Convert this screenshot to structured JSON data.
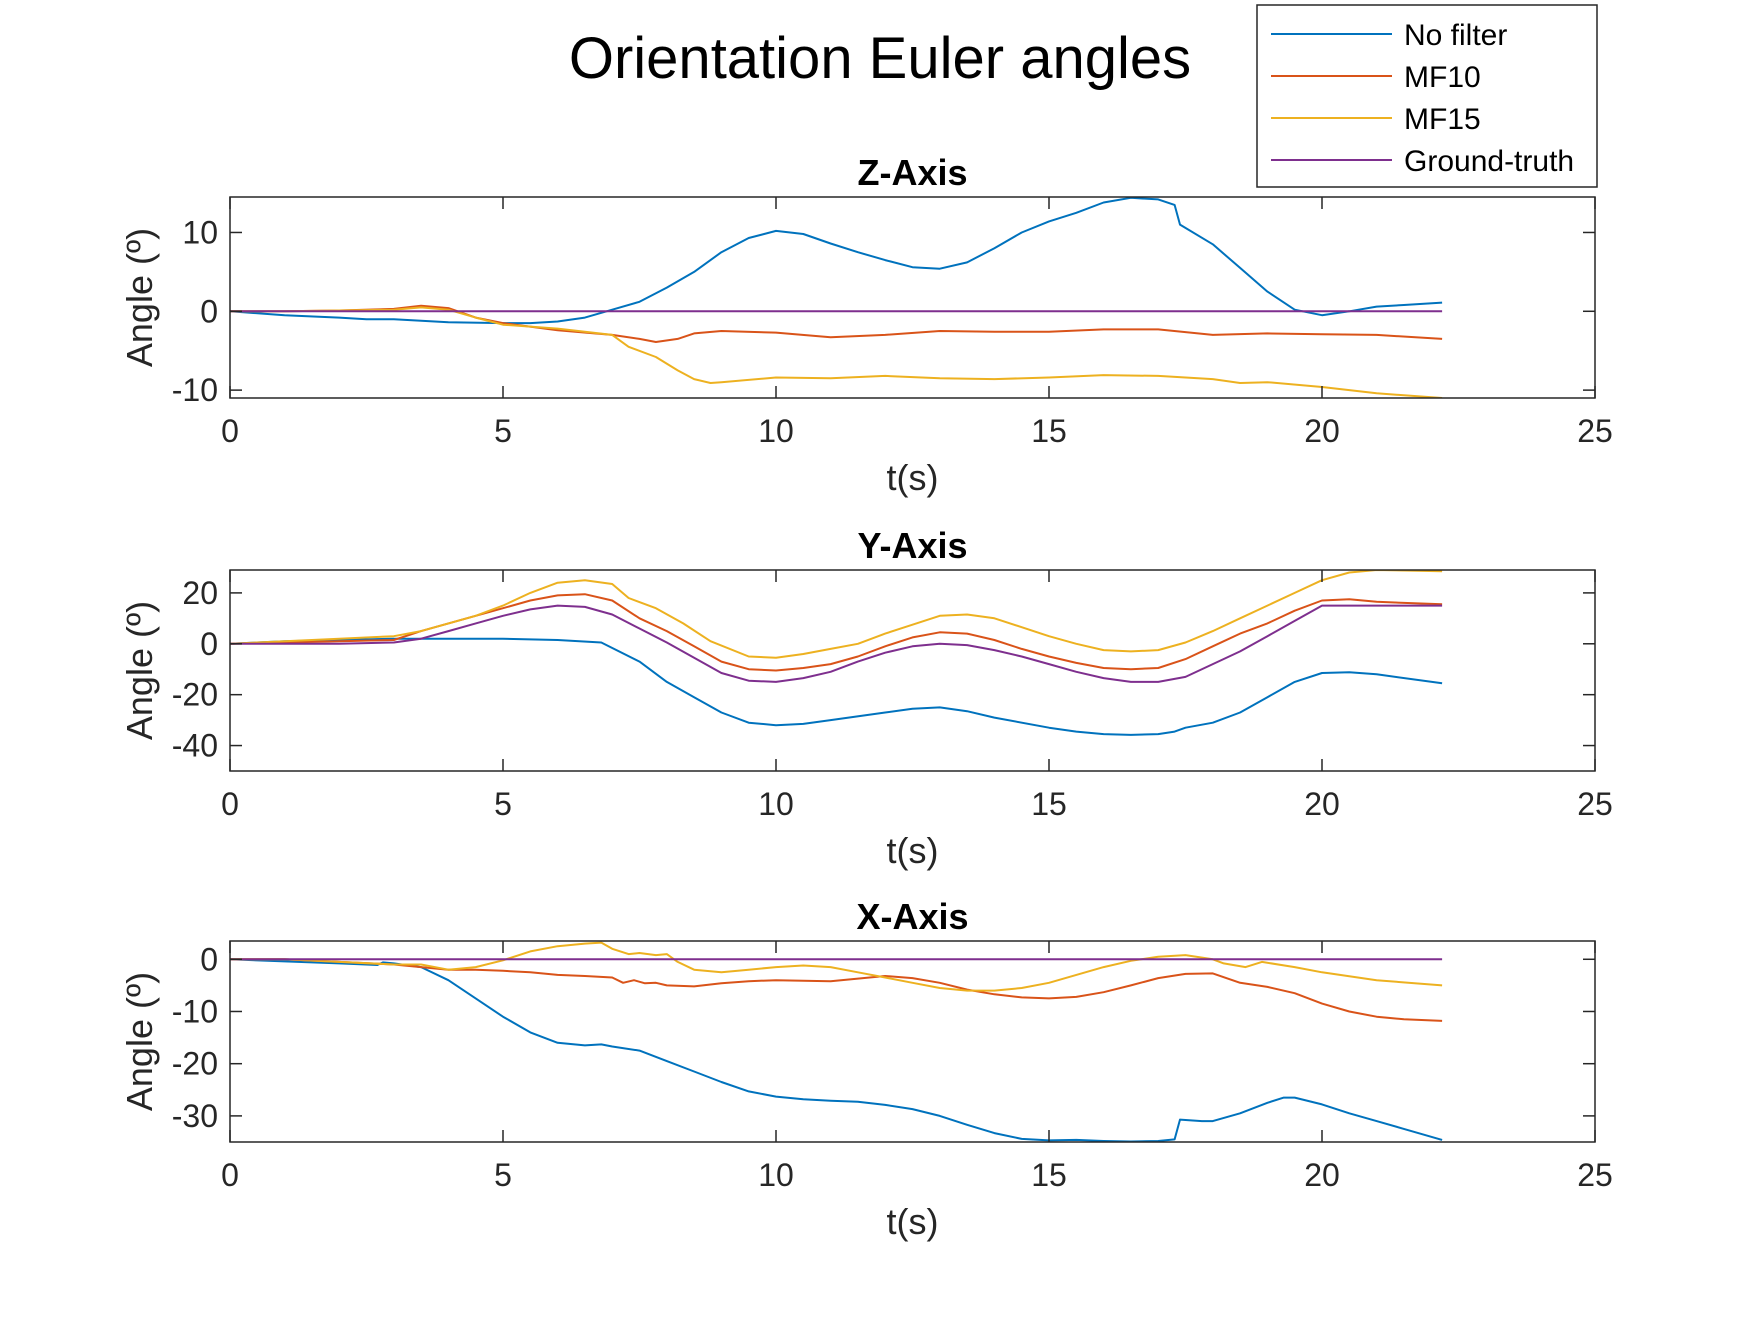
{
  "figure": {
    "title": "Orientation Euler angles",
    "legend": {
      "placement": "top-right",
      "entries": [
        {
          "name": "No filter",
          "color": "#0072BD"
        },
        {
          "name": "MF10",
          "color": "#D95319"
        },
        {
          "name": "MF15",
          "color": "#EDB120"
        },
        {
          "name": "Ground-truth",
          "color": "#7E2F8E"
        }
      ]
    }
  },
  "chart_data": [
    {
      "type": "line",
      "title": "Z-Axis",
      "xlabel": "t(s)",
      "ylabel": "Angle (º)",
      "xlim": [
        0,
        25
      ],
      "ylim": [
        -11,
        14.5
      ],
      "xticks": [
        0,
        5,
        10,
        15,
        20,
        25
      ],
      "yticks": [
        -10,
        0,
        10
      ],
      "grid": false,
      "series": [
        {
          "name": "No filter",
          "color": "#0072BD",
          "x": [
            0,
            1,
            2,
            2.5,
            3,
            4,
            5,
            5.5,
            6,
            6.5,
            7,
            7.5,
            8,
            8.5,
            9,
            9.5,
            10,
            10.5,
            11,
            11.5,
            12,
            12.5,
            13,
            13.5,
            14,
            14.5,
            15,
            15.5,
            16,
            16.5,
            17,
            17.3,
            17.4,
            18,
            18.5,
            19,
            19.5,
            20,
            20.5,
            21,
            21.5,
            22.2
          ],
          "y": [
            0,
            -0.5,
            -0.8,
            -1.0,
            -1.0,
            -1.4,
            -1.5,
            -1.5,
            -1.3,
            -0.8,
            0.2,
            1.2,
            3,
            5,
            7.5,
            9.3,
            10.2,
            9.8,
            8.6,
            7.5,
            6.5,
            5.6,
            5.4,
            6.2,
            8,
            10,
            11.4,
            12.5,
            13.8,
            14.4,
            14.2,
            13.5,
            11,
            8.5,
            5.5,
            2.5,
            0.2,
            -0.5,
            0.0,
            0.6,
            0.8,
            1.1
          ]
        },
        {
          "name": "MF10",
          "color": "#D95319",
          "x": [
            0,
            1,
            2,
            3,
            3.5,
            4,
            4.5,
            5,
            6,
            7,
            7.5,
            7.8,
            8.2,
            8.5,
            9,
            10,
            11,
            12,
            13,
            14,
            15,
            16,
            17,
            18,
            19,
            20,
            21,
            22.2
          ],
          "y": [
            0,
            0,
            0.1,
            0.3,
            0.7,
            0.4,
            -0.8,
            -1.5,
            -2.4,
            -3.0,
            -3.5,
            -3.9,
            -3.5,
            -2.8,
            -2.5,
            -2.7,
            -3.3,
            -3.0,
            -2.5,
            -2.6,
            -2.6,
            -2.3,
            -2.3,
            -3.0,
            -2.8,
            -2.9,
            -3.0,
            -3.5
          ]
        },
        {
          "name": "MF15",
          "color": "#EDB120",
          "x": [
            0,
            1,
            2,
            3,
            3.5,
            4,
            4.5,
            5,
            6,
            7,
            7.3,
            7.8,
            8.2,
            8.5,
            8.8,
            9,
            10,
            11,
            12,
            13,
            14,
            15,
            16,
            17,
            18,
            18.5,
            19,
            20,
            21,
            22.2
          ],
          "y": [
            0,
            0,
            0.1,
            0.2,
            0.5,
            0.2,
            -0.8,
            -1.7,
            -2.2,
            -3,
            -4.5,
            -5.8,
            -7.5,
            -8.6,
            -9.1,
            -9.0,
            -8.4,
            -8.5,
            -8.2,
            -8.5,
            -8.6,
            -8.4,
            -8.1,
            -8.2,
            -8.6,
            -9.1,
            -9.0,
            -9.6,
            -10.4,
            -11
          ]
        },
        {
          "name": "Ground-truth",
          "color": "#7E2F8E",
          "x": [
            0,
            22.2
          ],
          "y": [
            0,
            0
          ]
        }
      ]
    },
    {
      "type": "line",
      "title": "Y-Axis",
      "xlabel": "t(s)",
      "ylabel": "Angle (º)",
      "xlim": [
        0,
        25
      ],
      "ylim": [
        -50,
        29
      ],
      "xticks": [
        0,
        5,
        10,
        15,
        20,
        25
      ],
      "yticks": [
        -40,
        -20,
        0,
        20
      ],
      "grid": false,
      "series": [
        {
          "name": "No filter",
          "color": "#0072BD",
          "x": [
            0,
            1,
            2,
            3,
            4,
            5,
            6,
            6.8,
            7.5,
            8,
            8.5,
            9,
            9.5,
            10,
            10.5,
            11,
            12,
            12.5,
            13,
            13.5,
            14,
            15,
            15.5,
            16,
            16.5,
            17,
            17.3,
            17.5,
            18,
            18.5,
            19,
            19.5,
            20,
            20.5,
            21,
            22.2
          ],
          "y": [
            0,
            1,
            1.5,
            2,
            2,
            2,
            1.5,
            0.5,
            -7,
            -15,
            -21,
            -27,
            -31,
            -32,
            -31.5,
            -30,
            -27,
            -25.5,
            -25,
            -26.5,
            -29,
            -33,
            -34.5,
            -35.5,
            -35.8,
            -35.5,
            -34.5,
            -33,
            -31,
            -27,
            -21,
            -15,
            -11.5,
            -11.2,
            -12,
            -15.5
          ]
        },
        {
          "name": "MF10",
          "color": "#D95319",
          "x": [
            0,
            1,
            2,
            3,
            3.5,
            4,
            4.5,
            5,
            5.5,
            6,
            6.5,
            7,
            7.5,
            8,
            8.5,
            9,
            9.5,
            10,
            10.5,
            11,
            11.5,
            12,
            12.5,
            13,
            13.5,
            14,
            14.5,
            15,
            15.5,
            16,
            16.5,
            17,
            17.5,
            18,
            18.5,
            19,
            19.5,
            20,
            20.5,
            21,
            22.2
          ],
          "y": [
            0,
            0.5,
            1,
            1.5,
            5,
            8,
            11,
            14,
            17,
            19,
            19.5,
            17,
            10,
            5,
            -1,
            -7,
            -10,
            -10.5,
            -9.5,
            -8,
            -5,
            -1,
            2.5,
            4.5,
            4,
            1.5,
            -2,
            -5,
            -7.5,
            -9.5,
            -10,
            -9.5,
            -6,
            -1,
            4,
            8,
            13,
            17,
            17.5,
            16.5,
            15.5
          ]
        },
        {
          "name": "MF15",
          "color": "#EDB120",
          "x": [
            0,
            1,
            2,
            3,
            3.5,
            4,
            4.5,
            5,
            5.5,
            6,
            6.5,
            7,
            7.3,
            7.8,
            8.3,
            8.8,
            9.5,
            10,
            10.5,
            11,
            11.5,
            12,
            12.5,
            13,
            13.5,
            14,
            14.5,
            15,
            15.5,
            16,
            16.5,
            17,
            17.5,
            18,
            18.5,
            19,
            19.5,
            20,
            20.5,
            21,
            22.2
          ],
          "y": [
            0,
            1,
            2,
            3,
            5,
            8,
            11,
            15,
            20,
            24,
            25,
            23.5,
            18,
            14,
            8,
            1,
            -5,
            -5.5,
            -4,
            -2,
            0,
            4,
            7.5,
            11,
            11.5,
            10,
            6.5,
            3,
            0,
            -2.5,
            -3,
            -2.5,
            0.5,
            5,
            10,
            15,
            20,
            25,
            28,
            29,
            28.5
          ]
        },
        {
          "name": "Ground-truth",
          "color": "#7E2F8E",
          "x": [
            0,
            1,
            2,
            3,
            3.5,
            4,
            4.5,
            5,
            5.5,
            6,
            6.5,
            7,
            7.5,
            8,
            8.5,
            9,
            9.5,
            10,
            10.5,
            11,
            11.5,
            12,
            12.5,
            13,
            13.5,
            14,
            14.5,
            15,
            15.5,
            16,
            16.5,
            17,
            17.5,
            18,
            18.5,
            19,
            19.5,
            20,
            20.5,
            21,
            22.2
          ],
          "y": [
            0,
            0,
            0,
            0.5,
            2,
            5,
            8,
            11,
            13.5,
            15,
            14.5,
            11.5,
            6,
            0.5,
            -5.5,
            -11.5,
            -14.5,
            -15,
            -13.5,
            -11,
            -7,
            -3.5,
            -1,
            0,
            -0.5,
            -2.5,
            -5,
            -8,
            -11,
            -13.5,
            -15,
            -15,
            -13,
            -8,
            -3,
            3,
            9,
            15,
            15,
            15,
            15
          ]
        }
      ]
    },
    {
      "type": "line",
      "title": "X-Axis",
      "xlabel": "t(s)",
      "ylabel": "Angle (º)",
      "xlim": [
        0,
        25
      ],
      "ylim": [
        -35,
        3.5
      ],
      "xticks": [
        0,
        5,
        10,
        15,
        20,
        25
      ],
      "yticks": [
        -30,
        -20,
        -10,
        0
      ],
      "grid": false,
      "series": [
        {
          "name": "No filter",
          "color": "#0072BD",
          "x": [
            0,
            1,
            2,
            2.7,
            2.8,
            3,
            3.5,
            4,
            4.5,
            5,
            5.5,
            6,
            6.5,
            6.8,
            7,
            7.5,
            8,
            8.5,
            9,
            9.5,
            10,
            10.5,
            11,
            11.5,
            12,
            12.5,
            13,
            13.5,
            14,
            14.5,
            15,
            15.5,
            16,
            16.5,
            17,
            17.3,
            17.4,
            17.8,
            18,
            18.5,
            19,
            19.3,
            19.5,
            20,
            20.5,
            21,
            21.5,
            22.2
          ],
          "y": [
            0,
            -0.4,
            -0.8,
            -1.1,
            -0.6,
            -0.8,
            -1.5,
            -4,
            -7.5,
            -11,
            -14,
            -16,
            -16.5,
            -16.3,
            -16.7,
            -17.5,
            -19.5,
            -21.5,
            -23.5,
            -25.3,
            -26.3,
            -26.8,
            -27.1,
            -27.3,
            -27.9,
            -28.7,
            -30,
            -31.7,
            -33.3,
            -34.4,
            -34.7,
            -34.6,
            -34.8,
            -34.9,
            -34.8,
            -34.5,
            -30.7,
            -31,
            -31,
            -29.5,
            -27.5,
            -26.5,
            -26.5,
            -27.8,
            -29.5,
            -31,
            -32.5,
            -34.6
          ]
        },
        {
          "name": "MF10",
          "color": "#D95319",
          "x": [
            0,
            1,
            2,
            3,
            3.5,
            4,
            4.5,
            5,
            5.5,
            6,
            6.5,
            7,
            7.2,
            7.4,
            7.6,
            7.8,
            8,
            8.5,
            9,
            9.5,
            10,
            11,
            12,
            12.5,
            13,
            13.5,
            14,
            14.5,
            15,
            15.5,
            16,
            16.5,
            17,
            17.5,
            18,
            18.5,
            19,
            19.5,
            20,
            20.5,
            21,
            21.5,
            22.2
          ],
          "y": [
            0,
            0,
            -0.5,
            -1,
            -1.5,
            -2,
            -2,
            -2.2,
            -2.5,
            -3,
            -3.2,
            -3.5,
            -4.5,
            -4.0,
            -4.6,
            -4.5,
            -5,
            -5.2,
            -4.6,
            -4.2,
            -4,
            -4.2,
            -3.2,
            -3.6,
            -4.5,
            -5.8,
            -6.7,
            -7.3,
            -7.5,
            -7.2,
            -6.3,
            -5,
            -3.6,
            -2.8,
            -2.7,
            -4.5,
            -5.3,
            -6.5,
            -8.5,
            -10,
            -11,
            -11.5,
            -11.8
          ]
        },
        {
          "name": "MF15",
          "color": "#EDB120",
          "x": [
            0,
            1,
            2,
            3,
            3.5,
            4,
            4.5,
            5,
            5.5,
            6,
            6.5,
            6.8,
            7,
            7.3,
            7.5,
            7.8,
            8,
            8.2,
            8.5,
            9,
            9.5,
            10,
            10.5,
            11,
            11.5,
            12,
            12.5,
            13,
            13.5,
            14,
            14.5,
            15,
            15.5,
            16,
            16.5,
            17,
            17.5,
            18,
            18.2,
            18.6,
            18.9,
            19.5,
            20,
            21,
            22.2
          ],
          "y": [
            0,
            0,
            -0.5,
            -1,
            -1,
            -2,
            -1.5,
            -0.2,
            1.5,
            2.5,
            3,
            3.2,
            2,
            1,
            1.2,
            0.8,
            1,
            -0.5,
            -2,
            -2.5,
            -2,
            -1.5,
            -1.2,
            -1.5,
            -2.5,
            -3.5,
            -4.5,
            -5.5,
            -6,
            -6,
            -5.5,
            -4.5,
            -3,
            -1.5,
            -0.3,
            0.5,
            0.8,
            0,
            -0.8,
            -1.5,
            -0.5,
            -1.5,
            -2.5,
            -4,
            -5
          ]
        },
        {
          "name": "Ground-truth",
          "color": "#7E2F8E",
          "x": [
            0,
            22.2
          ],
          "y": [
            0,
            0
          ]
        }
      ]
    }
  ]
}
